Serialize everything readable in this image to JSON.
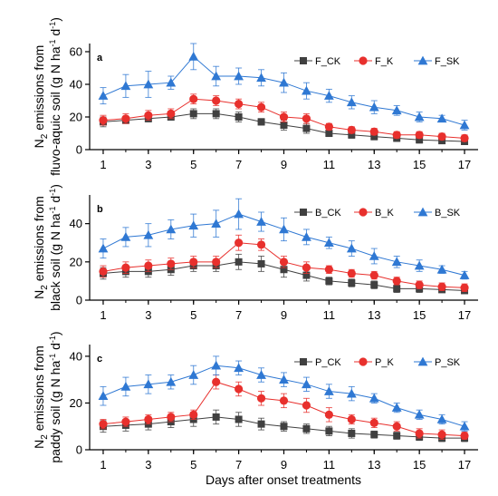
{
  "figure": {
    "xlabel": "Days after onset treatments"
  },
  "chart_data": [
    {
      "type": "line",
      "panel": "a",
      "ylabel_line1": "N2 emissions from",
      "ylabel_line2": "fluvo-aquic soil (g N ha-1 d-1)",
      "ylabel_parts": {
        "l1_pre": "N",
        "l1_sub": "2",
        "l1_post": " emissions from",
        "l2_pre": "fluvo-aquic soil (g N ha",
        "sup1": "-1",
        "l2_mid": " d",
        "sup2": "-1",
        "l2_post": ")"
      },
      "x": [
        1,
        2,
        3,
        4,
        5,
        6,
        7,
        8,
        9,
        10,
        11,
        12,
        13,
        14,
        15,
        16,
        17
      ],
      "xticks": [
        "1",
        "3",
        "5",
        "7",
        "9",
        "11",
        "13",
        "15",
        "17"
      ],
      "xtick_values": [
        1,
        3,
        5,
        7,
        9,
        11,
        13,
        15,
        17
      ],
      "ylim": [
        0,
        65
      ],
      "yticks": [
        0,
        20,
        40,
        60
      ],
      "legend_position": "top-right",
      "series": [
        {
          "name": "F_CK",
          "marker": "square",
          "color": "#404040",
          "values": [
            17,
            18,
            19,
            20,
            22,
            22,
            20,
            17,
            15,
            13,
            10,
            9,
            8,
            7,
            6,
            5.5,
            5
          ],
          "errors": [
            3,
            2,
            2,
            2,
            3,
            3,
            3,
            2,
            3,
            3,
            2,
            2,
            2,
            2,
            2,
            1.5,
            1.5
          ]
        },
        {
          "name": "F_K",
          "marker": "circle",
          "color": "#e8302d",
          "values": [
            18,
            19,
            21,
            22,
            31,
            30,
            28,
            26,
            20,
            19,
            14,
            12,
            11,
            9,
            9,
            8,
            7
          ],
          "errors": [
            3,
            3,
            3,
            3,
            3,
            3,
            3,
            3,
            3,
            3,
            2,
            2,
            2,
            2,
            2,
            2,
            2
          ]
        },
        {
          "name": "F_SK",
          "marker": "triangle",
          "color": "#2f78d3",
          "values": [
            33,
            39,
            40,
            41,
            57,
            45,
            45,
            44,
            41,
            36,
            33,
            29,
            26,
            24,
            20,
            19,
            15
          ],
          "errors": [
            5,
            7,
            8,
            4,
            8,
            6,
            5,
            5,
            6,
            5,
            4,
            4,
            4,
            3,
            3,
            2,
            3
          ]
        }
      ]
    },
    {
      "type": "line",
      "panel": "b",
      "ylabel_parts": {
        "l1_pre": "N",
        "l1_sub": "2",
        "l1_post": " emissions from",
        "l2_pre": "black soil (g N ha",
        "sup1": "-1",
        "l2_mid": " d",
        "sup2": "-1",
        "l2_post": ")"
      },
      "x": [
        1,
        2,
        3,
        4,
        5,
        6,
        7,
        8,
        9,
        10,
        11,
        12,
        13,
        14,
        15,
        16,
        17
      ],
      "xticks": [
        "1",
        "3",
        "5",
        "7",
        "9",
        "11",
        "13",
        "15",
        "17"
      ],
      "xtick_values": [
        1,
        3,
        5,
        7,
        9,
        11,
        13,
        15,
        17
      ],
      "ylim": [
        0,
        55
      ],
      "yticks": [
        0,
        20,
        40
      ],
      "legend_position": "top-right",
      "series": [
        {
          "name": "B_CK",
          "marker": "square",
          "color": "#404040",
          "values": [
            14,
            15,
            15,
            16,
            18,
            18,
            20,
            19,
            16,
            13,
            10,
            9,
            8,
            6,
            6,
            5.5,
            5
          ],
          "errors": [
            3,
            3,
            3,
            3,
            3,
            3,
            4,
            4,
            4,
            3,
            2,
            2,
            2,
            2,
            2,
            1.5,
            1.5
          ]
        },
        {
          "name": "B_K",
          "marker": "circle",
          "color": "#e8302d",
          "values": [
            15,
            17,
            18,
            19,
            20,
            20,
            30,
            29,
            20,
            17,
            16,
            14,
            13,
            10,
            8,
            7,
            6.5
          ],
          "errors": [
            3,
            3,
            3,
            3,
            3,
            3,
            4,
            3,
            3,
            3,
            2,
            2,
            2,
            2,
            2,
            2,
            2
          ]
        },
        {
          "name": "B_SK",
          "marker": "triangle",
          "color": "#2f78d3",
          "values": [
            27,
            33,
            34,
            37,
            39,
            40,
            45,
            41,
            37,
            33,
            30,
            27,
            23,
            20,
            18,
            16,
            13
          ],
          "errors": [
            5,
            5,
            6,
            5,
            6,
            7,
            8,
            5,
            6,
            4,
            3,
            4,
            4,
            3,
            3,
            2,
            2
          ]
        }
      ]
    },
    {
      "type": "line",
      "panel": "c",
      "ylabel_parts": {
        "l1_pre": "N",
        "l1_sub": "2",
        "l1_post": " emissions from",
        "l2_pre": "paddy soil (g N ha",
        "sup1": "-1",
        "l2_mid": " d",
        "sup2": "-1",
        "l2_post": ")"
      },
      "x": [
        1,
        2,
        3,
        4,
        5,
        6,
        7,
        8,
        9,
        10,
        11,
        12,
        13,
        14,
        15,
        16,
        17
      ],
      "xticks": [
        "1",
        "3",
        "5",
        "7",
        "9",
        "11",
        "13",
        "15",
        "17"
      ],
      "xtick_values": [
        1,
        3,
        5,
        7,
        9,
        11,
        13,
        15,
        17
      ],
      "ylim": [
        0,
        45
      ],
      "yticks": [
        0,
        20,
        40
      ],
      "legend_position": "top-right",
      "series": [
        {
          "name": "P_CK",
          "marker": "square",
          "color": "#404040",
          "values": [
            10,
            10.5,
            11,
            12,
            13,
            14,
            13,
            11,
            10,
            9,
            8,
            7,
            6.5,
            6,
            5.5,
            5,
            5
          ],
          "errors": [
            2.5,
            2.5,
            2.5,
            2.5,
            3,
            3,
            3,
            2.5,
            2,
            2,
            2,
            2,
            1.5,
            1.5,
            1.5,
            1.5,
            1.5
          ]
        },
        {
          "name": "P_K",
          "marker": "circle",
          "color": "#e8302d",
          "values": [
            11,
            12,
            13,
            14,
            15,
            29,
            26,
            22,
            21,
            19,
            15,
            13,
            11.5,
            10,
            7,
            6.5,
            6
          ],
          "errors": [
            2,
            2,
            2,
            2,
            2,
            3,
            3,
            3,
            3,
            3,
            3,
            2,
            2,
            2,
            2,
            2,
            1.5
          ]
        },
        {
          "name": "P_SK",
          "marker": "triangle",
          "color": "#2f78d3",
          "values": [
            23,
            27,
            28,
            29,
            32,
            36,
            35,
            32,
            30,
            28,
            25,
            24,
            22,
            18,
            15,
            13,
            10
          ],
          "errors": [
            4,
            4,
            4,
            3,
            4,
            4,
            3,
            3,
            3,
            3,
            3,
            3,
            2,
            2,
            2,
            2,
            2
          ]
        }
      ]
    }
  ]
}
